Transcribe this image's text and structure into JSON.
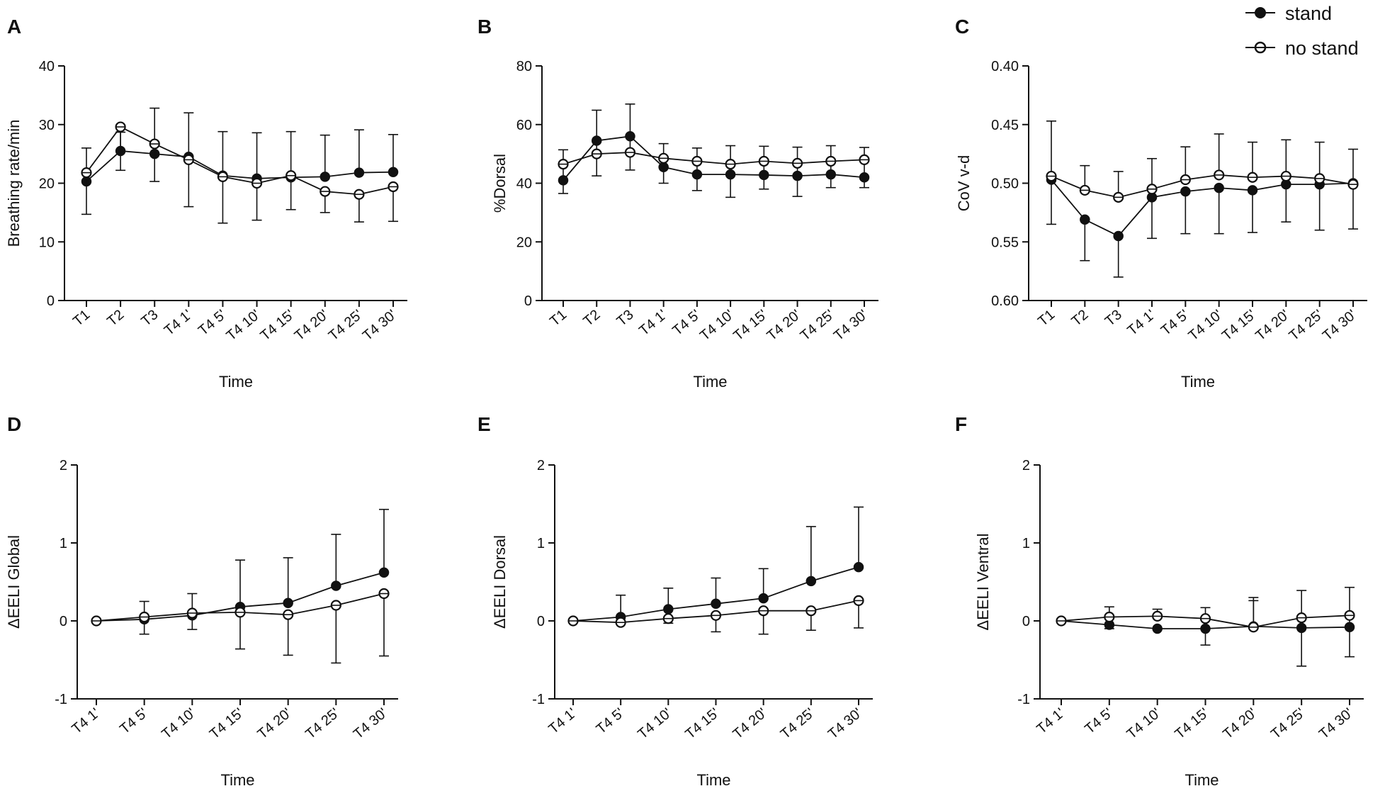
{
  "legend": {
    "items": [
      {
        "label": "stand",
        "marker": "filled-circle"
      },
      {
        "label": "no stand",
        "marker": "open-circle"
      }
    ]
  },
  "colors": {
    "ink": "#111111",
    "background": "#ffffff"
  },
  "chart_data": [
    {
      "id": "A",
      "letter": "A",
      "type": "line",
      "xlabel": "Time",
      "ylabel": "Breathing rate/min",
      "categories": [
        "T1",
        "T2",
        "T3",
        "T4 1'",
        "T4 5'",
        "T4 10'",
        "T4 15'",
        "T4 20'",
        "T4 25'",
        "T4 30'"
      ],
      "ylim": [
        0,
        40
      ],
      "yticks": [
        0,
        10,
        20,
        30,
        40
      ],
      "reversed": false,
      "series": [
        {
          "name": "stand",
          "marker": "filled",
          "values": [
            20.3,
            25.5,
            25.0,
            24.5,
            21.3,
            20.8,
            21.0,
            21.1,
            21.8,
            21.9
          ],
          "err_up": [
            5.7,
            3.2,
            7.8,
            7.5,
            7.5,
            7.8,
            7.8,
            7.1,
            7.3,
            6.4
          ],
          "err_down": [
            0,
            0,
            0,
            0,
            0,
            0,
            0,
            0,
            0,
            0
          ]
        },
        {
          "name": "no stand",
          "marker": "open",
          "values": [
            21.8,
            29.6,
            26.7,
            24.0,
            21.1,
            20.0,
            21.3,
            18.6,
            18.1,
            19.4
          ],
          "err_up": [
            0,
            0,
            0,
            0,
            0,
            0,
            0,
            0,
            0,
            0
          ],
          "err_down": [
            7.1,
            7.4,
            6.4,
            8.0,
            7.9,
            6.3,
            5.8,
            3.6,
            4.7,
            5.9
          ]
        }
      ]
    },
    {
      "id": "B",
      "letter": "B",
      "type": "line",
      "xlabel": "Time",
      "ylabel": "%Dorsal",
      "categories": [
        "T1",
        "T2",
        "T3",
        "T4 1'",
        "T4 5'",
        "T4 10'",
        "T4 15'",
        "T4 20'",
        "T4 25'",
        "T4 30'"
      ],
      "ylim": [
        0,
        80
      ],
      "yticks": [
        0,
        20,
        40,
        60,
        80
      ],
      "reversed": false,
      "series": [
        {
          "name": "stand",
          "marker": "filled",
          "values": [
            41,
            54.5,
            56,
            45.5,
            43,
            43,
            42.8,
            42.5,
            43,
            42
          ],
          "err_up": [
            10.4,
            10.4,
            11,
            8,
            9,
            9.8,
            9.8,
            9.8,
            9.8,
            10.2
          ],
          "err_down": [
            4.5,
            12,
            11.5,
            5.5,
            5.5,
            7.8,
            4.8,
            7,
            4.5,
            3.5
          ]
        },
        {
          "name": "no stand",
          "marker": "open",
          "values": [
            46.5,
            50,
            50.5,
            48.5,
            47.5,
            46.5,
            47.5,
            46.8,
            47.5,
            48
          ],
          "err_up": [
            0,
            0,
            0,
            0,
            0,
            0,
            0,
            0,
            0,
            0
          ],
          "err_down": [
            0,
            0,
            0,
            0,
            0,
            0,
            0,
            0,
            0,
            0
          ]
        }
      ]
    },
    {
      "id": "C",
      "letter": "C",
      "type": "line",
      "xlabel": "Time",
      "ylabel": "CoV v-d",
      "categories": [
        "T1",
        "T2",
        "T3",
        "T4 1'",
        "T4 5'",
        "T4 10'",
        "T4 15'",
        "T4 20'",
        "T4 25'",
        "T4 30'"
      ],
      "ylim": [
        0.4,
        0.6
      ],
      "yticks": [
        0.4,
        0.45,
        0.5,
        0.55,
        0.6
      ],
      "reversed": true,
      "ydecimals": 2,
      "series": [
        {
          "name": "stand",
          "marker": "filled",
          "values": [
            0.497,
            0.531,
            0.545,
            0.512,
            0.507,
            0.504,
            0.506,
            0.501,
            0.501,
            0.5
          ],
          "err_up": [
            0.038,
            0.035,
            0.035,
            0.035,
            0.036,
            0.039,
            0.036,
            0.032,
            0.039,
            0.039
          ],
          "err_down": [
            0,
            0,
            0,
            0,
            0,
            0,
            0,
            0,
            0,
            0
          ]
        },
        {
          "name": "no stand",
          "marker": "open",
          "values": [
            0.494,
            0.506,
            0.512,
            0.505,
            0.497,
            0.493,
            0.495,
            0.494,
            0.496,
            0.501
          ],
          "err_up": [
            0,
            0,
            0,
            0,
            0,
            0,
            0,
            0,
            0,
            0
          ],
          "err_down": [
            0.047,
            0.021,
            0.022,
            0.026,
            0.028,
            0.035,
            0.03,
            0.031,
            0.031,
            0.03
          ]
        }
      ]
    },
    {
      "id": "D",
      "letter": "D",
      "type": "line",
      "xlabel": "Time",
      "ylabel": "ΔEELI Global",
      "categories": [
        "T4 1'",
        "T4 5'",
        "T4 10'",
        "T4 15'",
        "T4 20'",
        "T4 25'",
        "T4 30'"
      ],
      "ylim": [
        -1,
        2
      ],
      "yticks": [
        -1,
        0,
        1,
        2
      ],
      "reversed": false,
      "series": [
        {
          "name": "stand",
          "marker": "filled",
          "values": [
            0,
            0.02,
            0.07,
            0.18,
            0.23,
            0.45,
            0.62
          ],
          "err_up": [
            0,
            0.23,
            0.28,
            0.6,
            0.58,
            0.66,
            0.81
          ],
          "err_down": [
            0,
            0,
            0,
            0,
            0,
            0,
            0
          ]
        },
        {
          "name": "no stand",
          "marker": "open",
          "values": [
            0,
            0.05,
            0.1,
            0.11,
            0.08,
            0.2,
            0.35
          ],
          "err_up": [
            0,
            0,
            0,
            0,
            0,
            0,
            0
          ],
          "err_down": [
            0,
            0.22,
            0.21,
            0.47,
            0.52,
            0.74,
            0.8
          ]
        }
      ]
    },
    {
      "id": "E",
      "letter": "E",
      "type": "line",
      "xlabel": "Time",
      "ylabel": "ΔEELI Dorsal",
      "categories": [
        "T4 1'",
        "T4 5'",
        "T4 10'",
        "T4 15'",
        "T4 20'",
        "T4 25'",
        "T4 30'"
      ],
      "ylim": [
        -1,
        2
      ],
      "yticks": [
        -1,
        0,
        1,
        2
      ],
      "reversed": false,
      "series": [
        {
          "name": "stand",
          "marker": "filled",
          "values": [
            0,
            0.05,
            0.15,
            0.22,
            0.29,
            0.51,
            0.69
          ],
          "err_up": [
            0,
            0.28,
            0.27,
            0.33,
            0.38,
            0.7,
            0.77
          ],
          "err_down": [
            0,
            0,
            0,
            0,
            0,
            0,
            0
          ]
        },
        {
          "name": "no stand",
          "marker": "open",
          "values": [
            0,
            -0.02,
            0.03,
            0.07,
            0.13,
            0.13,
            0.26
          ],
          "err_up": [
            0,
            0,
            0,
            0,
            0,
            0,
            0
          ],
          "err_down": [
            0,
            0,
            0.06,
            0.21,
            0.3,
            0.25,
            0.35
          ]
        }
      ]
    },
    {
      "id": "F",
      "letter": "F",
      "type": "line",
      "xlabel": "Time",
      "ylabel": "ΔEELI Ventral",
      "categories": [
        "T4 1'",
        "T4 5'",
        "T4 10'",
        "T4 15'",
        "T4 20'",
        "T4 25'",
        "T4 30'"
      ],
      "ylim": [
        -1,
        2
      ],
      "yticks": [
        -1,
        0,
        1,
        2
      ],
      "reversed": false,
      "series": [
        {
          "name": "stand",
          "marker": "filled",
          "values": [
            0,
            -0.05,
            -0.1,
            -0.1,
            -0.07,
            -0.09,
            -0.08
          ],
          "err_up": [
            0,
            0,
            0,
            0,
            0.33,
            0,
            0
          ],
          "err_down": [
            0,
            0.05,
            0,
            0,
            0,
            0,
            0
          ]
        },
        {
          "name": "no stand",
          "marker": "open",
          "values": [
            0,
            0.05,
            0.06,
            0.03,
            -0.08,
            0.04,
            0.07
          ],
          "err_up": [
            0,
            0.13,
            0.09,
            0.14,
            0.38,
            0.35,
            0.36
          ],
          "err_down": [
            0,
            0,
            0,
            0.34,
            0,
            0.62,
            0.53
          ]
        }
      ]
    }
  ]
}
